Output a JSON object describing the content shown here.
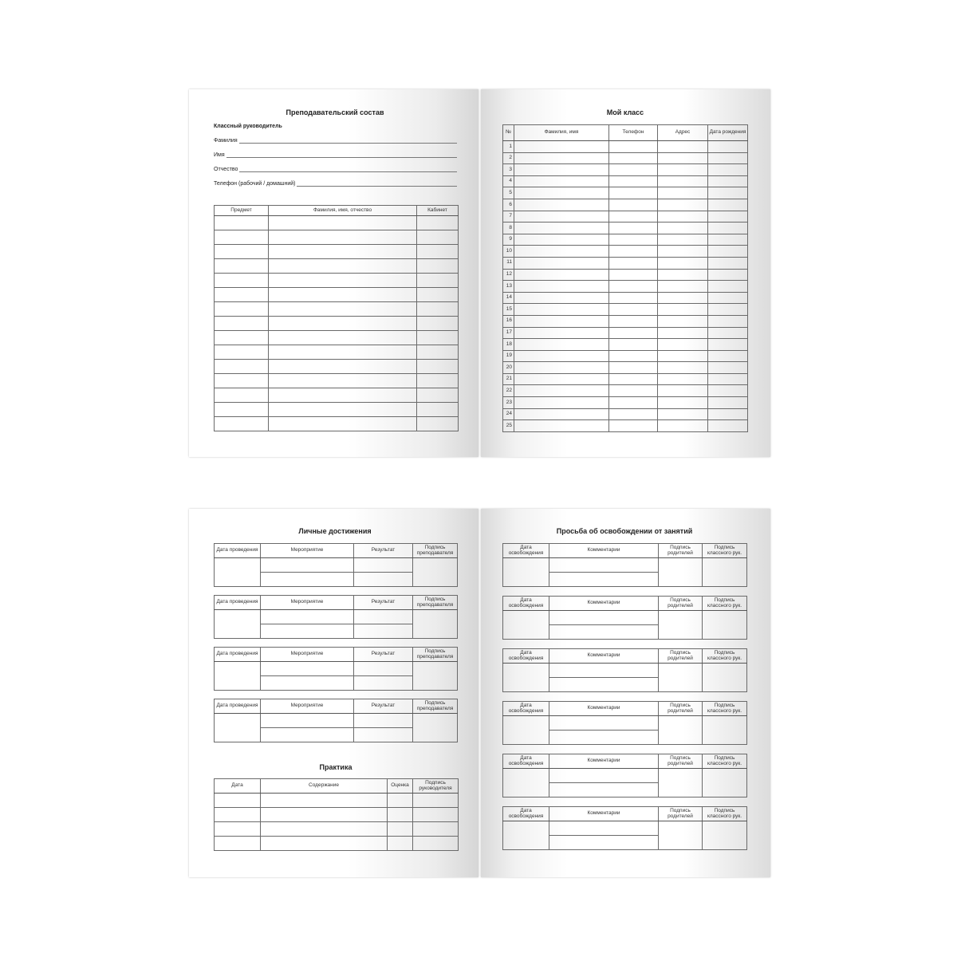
{
  "teachers": {
    "title": "Преподавательский состав",
    "subtitle": "Классный руководитель",
    "fields": [
      "Фамилия",
      "Имя",
      "Отчество",
      "Телефон (рабочий / домашний)"
    ],
    "table_headers": [
      "Предмет",
      "Фамилия, имя, отчество",
      "Кабинет"
    ],
    "rows": 15
  },
  "my_class": {
    "title": "Мой класс",
    "table_headers": [
      "№",
      "Фамилия, имя",
      "Телефон",
      "Адрес",
      "Дата рождения"
    ],
    "row_numbers": [
      "1",
      "2",
      "3",
      "4",
      "5",
      "6",
      "7",
      "8",
      "9",
      "10",
      "11",
      "12",
      "13",
      "14",
      "15",
      "16",
      "17",
      "18",
      "19",
      "20",
      "21",
      "22",
      "23",
      "24",
      "25"
    ]
  },
  "achievements": {
    "title": "Личные достижения",
    "table_headers": [
      "Дата проведения",
      "Мероприятие",
      "Результат",
      "Подпись преподавателя"
    ],
    "blocks": 4
  },
  "practice": {
    "title": "Практика",
    "table_headers": [
      "Дата",
      "Содержание",
      "Оценка",
      "Подпись руководителя"
    ],
    "rows": 4
  },
  "exemption": {
    "title": "Просьба об освобождении от занятий",
    "table_headers": [
      "Дата освобождения",
      "Комментарии",
      "Подпись родителей",
      "Подпись классного рук."
    ],
    "blocks": 6
  }
}
